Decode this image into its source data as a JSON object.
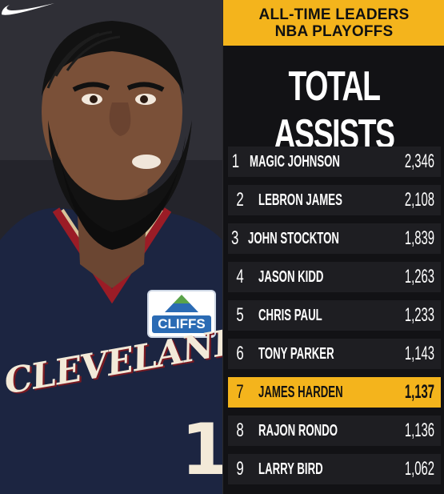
{
  "header": {
    "line1": "ALL-TIME LEADERS",
    "line2": "NBA PLAYOFFS"
  },
  "title": "TOTAL ASSISTS",
  "photo": {
    "jersey_text": "CLEVELAND",
    "jersey_number": "1",
    "sponsor": "CLIFFS"
  },
  "leaders": [
    {
      "rank": "1",
      "name": "MAGIC JOHNSON",
      "value": "2,346",
      "highlight": false
    },
    {
      "rank": "2",
      "name": "LEBRON JAMES",
      "value": "2,108",
      "highlight": false
    },
    {
      "rank": "3",
      "name": "JOHN STOCKTON",
      "value": "1,839",
      "highlight": false
    },
    {
      "rank": "4",
      "name": "JASON KIDD",
      "value": "1,263",
      "highlight": false
    },
    {
      "rank": "5",
      "name": "CHRIS PAUL",
      "value": "1,233",
      "highlight": false
    },
    {
      "rank": "6",
      "name": "TONY PARKER",
      "value": "1,143",
      "highlight": false
    },
    {
      "rank": "7",
      "name": "JAMES HARDEN",
      "value": "1,137",
      "highlight": true
    },
    {
      "rank": "8",
      "name": "RAJON RONDO",
      "value": "1,136",
      "highlight": false
    },
    {
      "rank": "9",
      "name": "LARRY BIRD",
      "value": "1,062",
      "highlight": false
    }
  ],
  "colors": {
    "accent": "#f4b41c",
    "row_bg": "#1e1e22",
    "panel_bg": "#121215"
  }
}
